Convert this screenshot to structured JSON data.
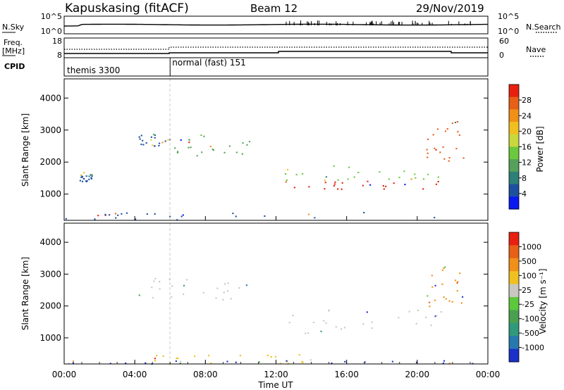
{
  "header": {
    "station": "Kapuskasing (fitACF)",
    "beam": "Beam 12",
    "date": "29/Nov/2019"
  },
  "noise_panel": {
    "left_label": "N.Sky",
    "right_label": "N.Search",
    "ticks": [
      "10^5",
      "10^0"
    ]
  },
  "freq_panel": {
    "left_label_1": "Freq.",
    "left_label_2": "[MHz]",
    "left_ticks": [
      "18",
      "8"
    ],
    "right_label": "Nave",
    "right_ticks": [
      "60",
      "0"
    ]
  },
  "cpid_panel": {
    "label": "CPID",
    "segments": [
      {
        "start_hour": 0,
        "end_hour": 6,
        "text": "themis 3300"
      },
      {
        "start_hour": 6,
        "end_hour": 24,
        "text": "normal (fast) 151"
      }
    ]
  },
  "x_axis": {
    "label": "Time UT",
    "ticks": [
      "00:00",
      "04:00",
      "08:00",
      "12:00",
      "16:00",
      "20:00",
      "00:00"
    ],
    "tick_hours": [
      0,
      4,
      8,
      12,
      16,
      20,
      24
    ],
    "range": [
      0,
      24
    ]
  },
  "chart_data": [
    {
      "type": "heatmap",
      "ylabel": "Slant Range [km]",
      "yticks": [
        "4000",
        "3000",
        "2000",
        "1000"
      ],
      "ytick_values": [
        4000,
        3000,
        2000,
        1000
      ],
      "xlim": [
        0,
        24
      ],
      "ylim": [
        180,
        4600
      ],
      "colorbar": {
        "label": "Power [dB]",
        "ticks": [
          "28",
          "24",
          "20",
          "16",
          "12",
          "8",
          "4"
        ],
        "colors": [
          "#0a19f0",
          "#1e50a0",
          "#2e7f78",
          "#55a15a",
          "#6cc83c",
          "#c8d83c",
          "#f0c020",
          "#f09018",
          "#e86018",
          "#e82010"
        ]
      },
      "scatter_regions": [
        {
          "x": [
            4.2,
            6.0
          ],
          "y": [
            2500,
            2900
          ],
          "color": "#1e50a0"
        },
        {
          "x": [
            6.0,
            10.5
          ],
          "y": [
            2200,
            2900
          ],
          "color": "#55a15a"
        },
        {
          "x": [
            0.8,
            1.6
          ],
          "y": [
            1400,
            1700
          ],
          "color": "#1e50a0"
        },
        {
          "x": [
            12.5,
            21.5
          ],
          "y": [
            1150,
            1450
          ],
          "color": "#e82010"
        },
        {
          "x": [
            12.5,
            21.8
          ],
          "y": [
            1450,
            1900
          ],
          "color": "#6cc83c"
        },
        {
          "x": [
            20.5,
            22.6
          ],
          "y": [
            2000,
            3300
          ],
          "color": "#e86018"
        },
        {
          "x": [
            0.0,
            24.0
          ],
          "y": [
            200,
            450
          ],
          "color": "#1e50a0"
        }
      ]
    },
    {
      "type": "heatmap",
      "ylabel": "Slant Range [km]",
      "yticks": [
        "4000",
        "3000",
        "2000",
        "1000"
      ],
      "ytick_values": [
        4000,
        3000,
        2000,
        1000
      ],
      "xlim": [
        0,
        24
      ],
      "ylim": [
        180,
        4600
      ],
      "colorbar": {
        "label": "Velocity [m s⁻¹]",
        "ticks": [
          "1000",
          "500",
          "100",
          "25",
          "-25",
          "-100",
          "-500",
          "-1000"
        ],
        "colors": [
          "#1a30c8",
          "#2878b0",
          "#2e9a7a",
          "#4aa050",
          "#5cc83c",
          "#c8c8c0",
          "#f0c020",
          "#f09018",
          "#e86018",
          "#e82010"
        ]
      },
      "scatter_regions": [
        {
          "x": [
            4.2,
            10.5
          ],
          "y": [
            2200,
            2900
          ],
          "color": "#c8c8c0"
        },
        {
          "x": [
            12.5,
            21.5
          ],
          "y": [
            1150,
            1900
          ],
          "color": "#c8c8c0"
        },
        {
          "x": [
            20.5,
            22.6
          ],
          "y": [
            2000,
            3300
          ],
          "color": "#f09018"
        },
        {
          "x": [
            5.0,
            14.0
          ],
          "y": [
            200,
            500
          ],
          "color": "#f0c020"
        },
        {
          "x": [
            0.0,
            24.0
          ],
          "y": [
            200,
            300
          ],
          "color": "#1a30c8"
        }
      ]
    }
  ]
}
